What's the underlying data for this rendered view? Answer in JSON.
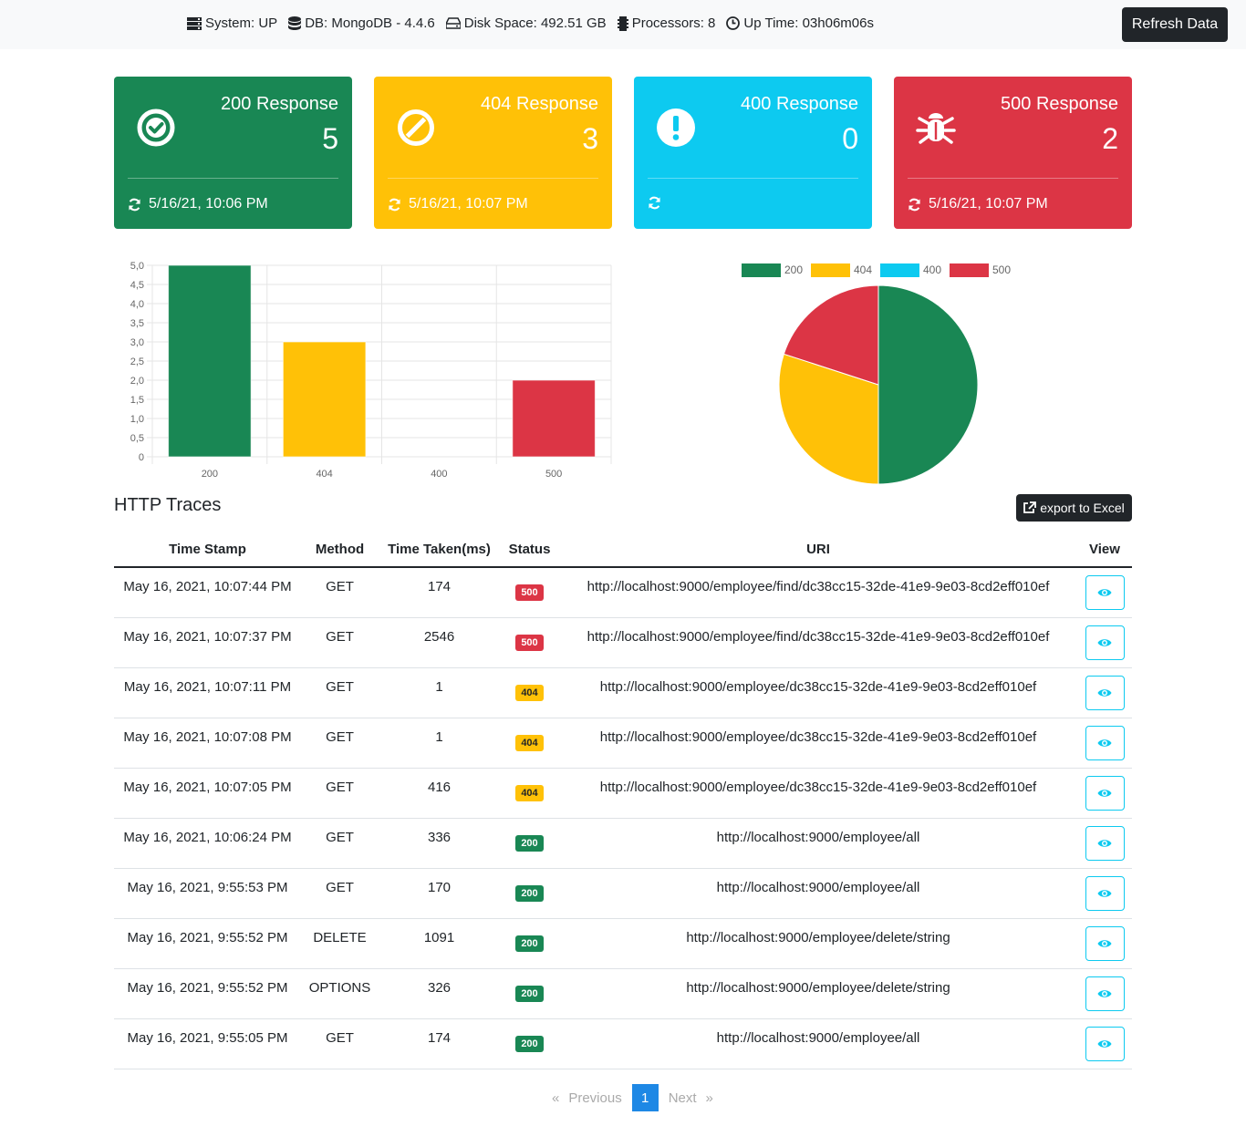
{
  "header": {
    "system": "System: UP",
    "db": "DB: MongoDB - 4.4.6",
    "disk": "Disk Space: 492.51 GB",
    "processors": "Processors: 8",
    "uptime": "Up Time: 03h06m06s",
    "refresh_label": "Refresh Data"
  },
  "cards": [
    {
      "title": "200 Response",
      "count": "5",
      "footer": "5/16/21, 10:06 PM",
      "color": "#198754",
      "icon": "check-circle-icon"
    },
    {
      "title": "404 Response",
      "count": "3",
      "footer": "5/16/21, 10:07 PM",
      "color": "#ffc107",
      "icon": "ban-icon"
    },
    {
      "title": "400 Response",
      "count": "0",
      "footer": "",
      "color": "#0dcaf0",
      "icon": "exclamation-circle-icon"
    },
    {
      "title": "500 Response",
      "count": "2",
      "footer": "5/16/21, 10:07 PM",
      "color": "#dc3545",
      "icon": "bug-icon"
    }
  ],
  "chart_data": [
    {
      "type": "bar",
      "categories": [
        "200",
        "404",
        "400",
        "500"
      ],
      "values": [
        5,
        3,
        0,
        2
      ],
      "colors": [
        "#198754",
        "#ffc107",
        "#0dcaf0",
        "#dc3545"
      ],
      "ylim": [
        0,
        5
      ],
      "yticks": [
        "0",
        "0,5",
        "1,0",
        "1,5",
        "2,0",
        "2,5",
        "3,0",
        "3,5",
        "4,0",
        "4,5",
        "5,0"
      ],
      "grid": true
    },
    {
      "type": "pie",
      "labels": [
        "200",
        "404",
        "400",
        "500"
      ],
      "values": [
        5,
        3,
        0,
        2
      ],
      "colors": [
        "#198754",
        "#ffc107",
        "#0dcaf0",
        "#dc3545"
      ],
      "legend": "top"
    }
  ],
  "traces": {
    "title": "HTTP Traces",
    "export_label": "export to Excel",
    "columns": [
      "Time Stamp",
      "Method",
      "Time Taken(ms)",
      "Status",
      "URI",
      "View"
    ],
    "rows": [
      {
        "timestamp": "May 16, 2021, 10:07:44 PM",
        "method": "GET",
        "time": "174",
        "status": "500",
        "uri": "http://localhost:9000/employee/find/dc38cc15-32de-41e9-9e03-8cd2eff010ef"
      },
      {
        "timestamp": "May 16, 2021, 10:07:37 PM",
        "method": "GET",
        "time": "2546",
        "status": "500",
        "uri": "http://localhost:9000/employee/find/dc38cc15-32de-41e9-9e03-8cd2eff010ef"
      },
      {
        "timestamp": "May 16, 2021, 10:07:11 PM",
        "method": "GET",
        "time": "1",
        "status": "404",
        "uri": "http://localhost:9000/employee/dc38cc15-32de-41e9-9e03-8cd2eff010ef"
      },
      {
        "timestamp": "May 16, 2021, 10:07:08 PM",
        "method": "GET",
        "time": "1",
        "status": "404",
        "uri": "http://localhost:9000/employee/dc38cc15-32de-41e9-9e03-8cd2eff010ef"
      },
      {
        "timestamp": "May 16, 2021, 10:07:05 PM",
        "method": "GET",
        "time": "416",
        "status": "404",
        "uri": "http://localhost:9000/employee/dc38cc15-32de-41e9-9e03-8cd2eff010ef"
      },
      {
        "timestamp": "May 16, 2021, 10:06:24 PM",
        "method": "GET",
        "time": "336",
        "status": "200",
        "uri": "http://localhost:9000/employee/all"
      },
      {
        "timestamp": "May 16, 2021, 9:55:53 PM",
        "method": "GET",
        "time": "170",
        "status": "200",
        "uri": "http://localhost:9000/employee/all"
      },
      {
        "timestamp": "May 16, 2021, 9:55:52 PM",
        "method": "DELETE",
        "time": "1091",
        "status": "200",
        "uri": "http://localhost:9000/employee/delete/string"
      },
      {
        "timestamp": "May 16, 2021, 9:55:52 PM",
        "method": "OPTIONS",
        "time": "326",
        "status": "200",
        "uri": "http://localhost:9000/employee/delete/string"
      },
      {
        "timestamp": "May 16, 2021, 9:55:05 PM",
        "method": "GET",
        "time": "174",
        "status": "200",
        "uri": "http://localhost:9000/employee/all"
      }
    ]
  },
  "pagination": {
    "prev_arrow": "«",
    "previous": "Previous",
    "current": "1",
    "next": "Next",
    "next_arrow": "»"
  }
}
